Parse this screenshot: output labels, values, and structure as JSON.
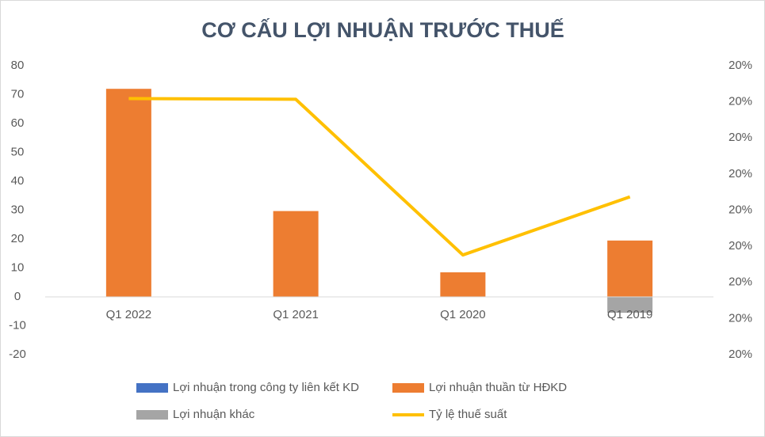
{
  "chart_data": {
    "type": "bar_line",
    "title": "CƠ CẤU LỢI NHUẬN TRƯỚC THUẾ",
    "categories": [
      "Q1 2022",
      "Q1 2021",
      "Q1 2020",
      "Q1 2019"
    ],
    "ylim": [
      -20,
      80
    ],
    "yticks": [
      -20,
      -10,
      0,
      10,
      20,
      30,
      40,
      50,
      60,
      70,
      80
    ],
    "y2lim": [
      19.6,
      20.4
    ],
    "y2ticks": [
      {
        "value": 19.6,
        "label": "20%"
      },
      {
        "value": 19.7,
        "label": "20%"
      },
      {
        "value": 19.8,
        "label": "20%"
      },
      {
        "value": 19.9,
        "label": "20%"
      },
      {
        "value": 20.0,
        "label": "20%"
      },
      {
        "value": 20.1,
        "label": "20%"
      },
      {
        "value": 20.2,
        "label": "20%"
      },
      {
        "value": 20.3,
        "label": "20%"
      },
      {
        "value": 20.4,
        "label": "20%"
      }
    ],
    "series": [
      {
        "name": "Lợi nhuận trong công ty liên kết KD",
        "color": "#4472c4",
        "type": "bar",
        "values": [
          0,
          0,
          0,
          0
        ]
      },
      {
        "name": "Lợi nhuận thuần từ HĐKD",
        "color": "#ed7d31",
        "type": "bar",
        "values": [
          72,
          29.7,
          8.5,
          19.5
        ]
      },
      {
        "name": "Lợi nhuận khác",
        "color": "#a5a5a5",
        "type": "bar",
        "values": [
          0,
          0,
          0,
          -5.5
        ]
      },
      {
        "name": "Tỷ lệ thuế suất",
        "color": "#ffc000",
        "type": "line",
        "axis": "y2",
        "values": [
          20.309,
          20.307,
          19.876,
          20.037
        ]
      }
    ]
  }
}
